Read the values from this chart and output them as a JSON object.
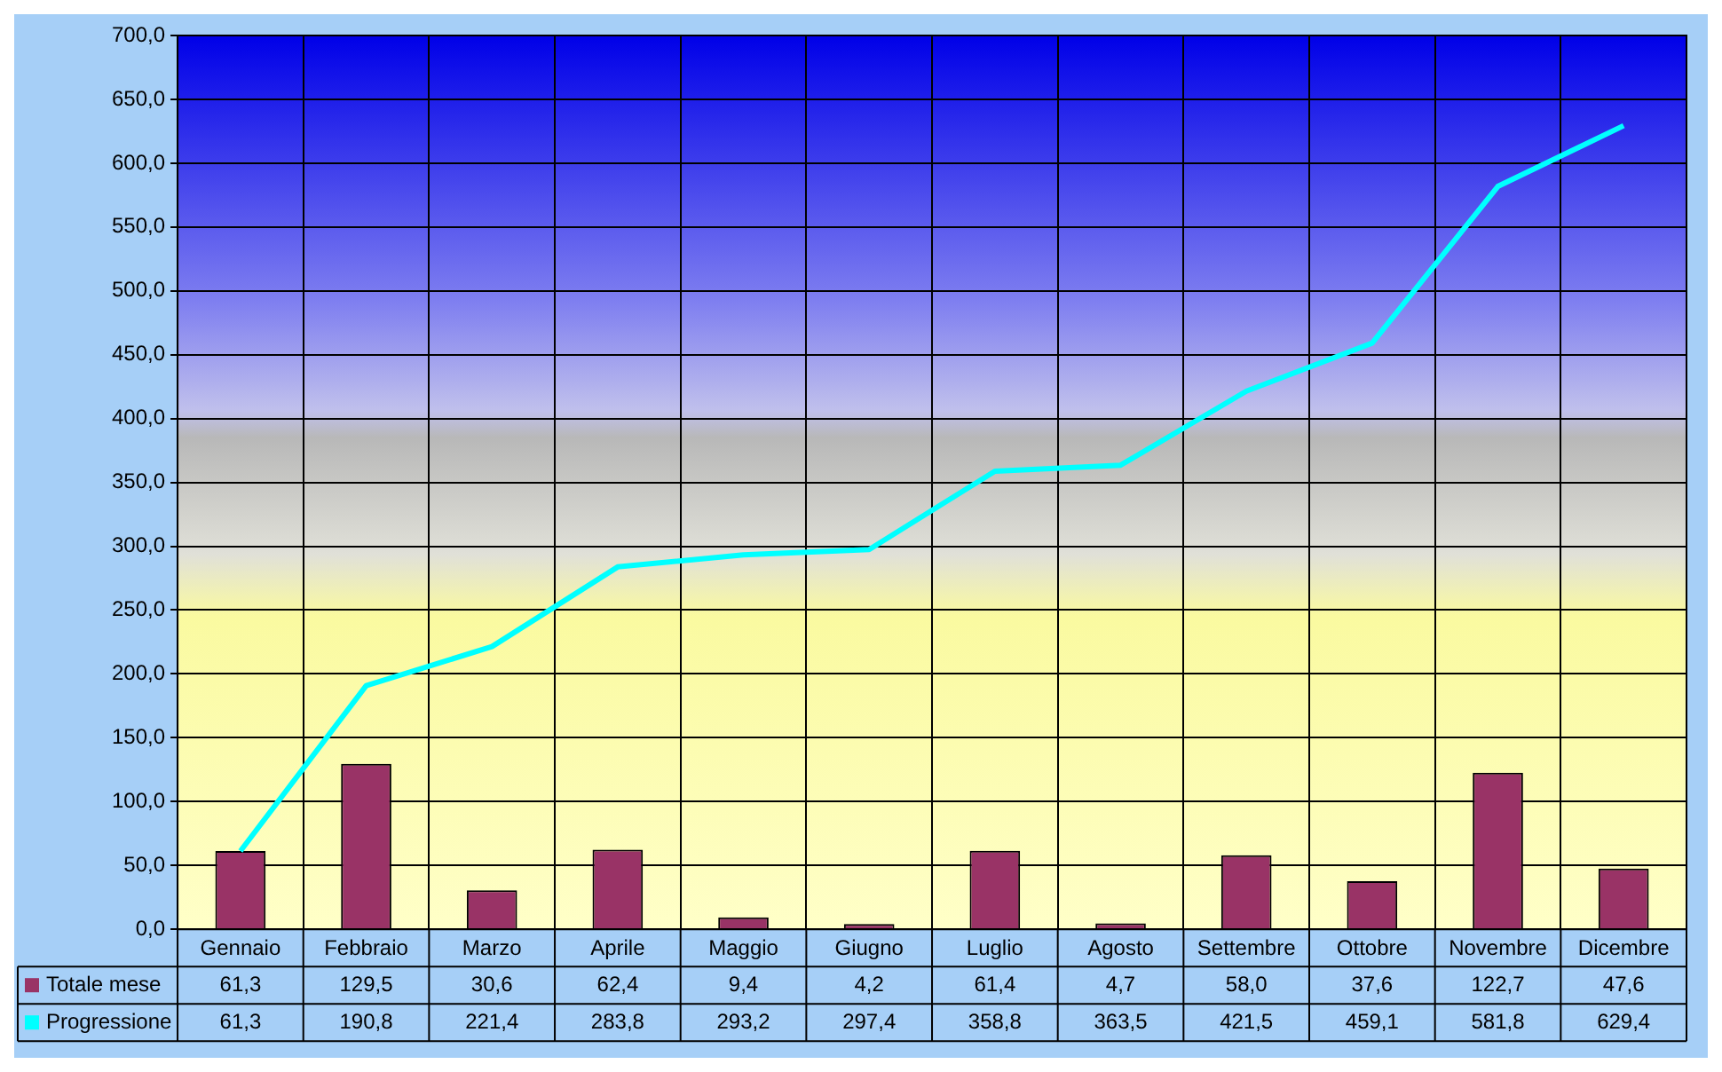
{
  "chart_data": {
    "type": "bar",
    "categories": [
      "Gennaio",
      "Febbraio",
      "Marzo",
      "Aprile",
      "Maggio",
      "Giugno",
      "Luglio",
      "Agosto",
      "Settembre",
      "Ottobre",
      "Novembre",
      "Dicembre"
    ],
    "series": [
      {
        "name": "Totale mese",
        "color": "#993366",
        "values": [
          61.3,
          129.5,
          30.6,
          62.4,
          9.4,
          4.2,
          61.4,
          4.7,
          58.0,
          37.6,
          122.7,
          47.6
        ],
        "value_labels": [
          "61,3",
          "129,5",
          "30,6",
          "62,4",
          "9,4",
          "4,2",
          "61,4",
          "4,7",
          "58,0",
          "37,6",
          "122,7",
          "47,6"
        ]
      },
      {
        "name": "Progressione",
        "type": "line",
        "color": "#00ffff",
        "values": [
          61.3,
          190.8,
          221.4,
          283.8,
          293.2,
          297.4,
          358.8,
          363.5,
          421.5,
          459.1,
          581.8,
          629.4
        ],
        "value_labels": [
          "61,3",
          "190,8",
          "221,4",
          "283,8",
          "293,2",
          "297,4",
          "358,8",
          "363,5",
          "421,5",
          "459,1",
          "581,8",
          "629,4"
        ]
      }
    ],
    "ylim": [
      0,
      700
    ],
    "yticks": [
      {
        "value": 0,
        "label": "0,0"
      },
      {
        "value": 50,
        "label": "50,0"
      },
      {
        "value": 100,
        "label": "100,0"
      },
      {
        "value": 150,
        "label": "150,0"
      },
      {
        "value": 200,
        "label": "200,0"
      },
      {
        "value": 250,
        "label": "250,0"
      },
      {
        "value": 300,
        "label": "300,0"
      },
      {
        "value": 350,
        "label": "350,0"
      },
      {
        "value": 400,
        "label": "400,0"
      },
      {
        "value": 450,
        "label": "450,0"
      },
      {
        "value": 500,
        "label": "500,0"
      },
      {
        "value": 550,
        "label": "550,0"
      },
      {
        "value": 600,
        "label": "600,0"
      },
      {
        "value": 650,
        "label": "650,0"
      },
      {
        "value": 700,
        "label": "700,0"
      }
    ],
    "grid": true,
    "legend": "bottom left",
    "marker": "none",
    "line_style": "solid"
  }
}
